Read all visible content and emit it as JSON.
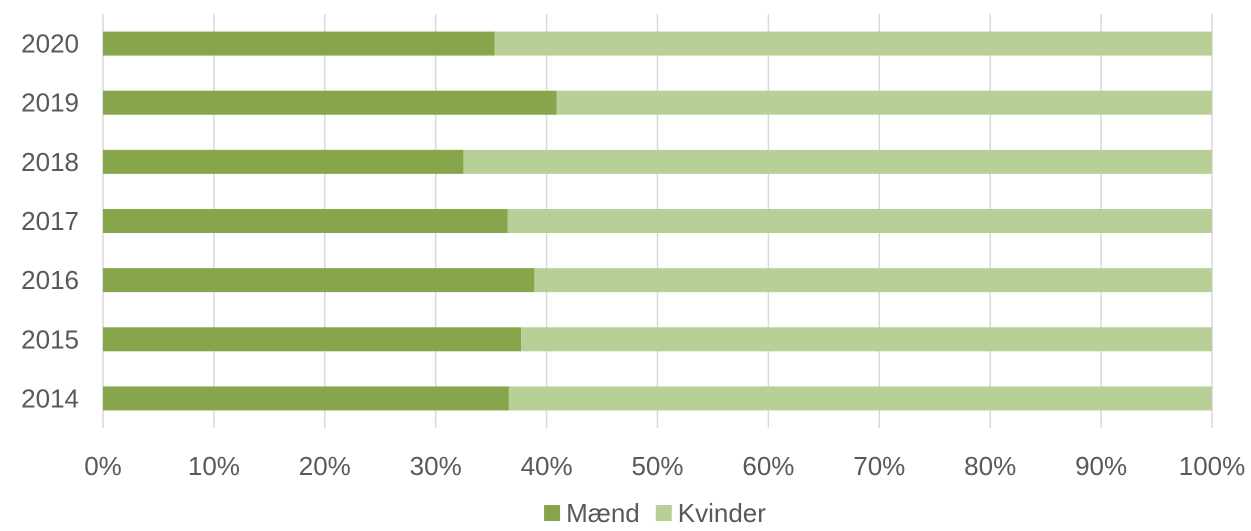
{
  "chart_data": {
    "type": "bar",
    "orientation": "horizontal",
    "stacked": "percent",
    "categories": [
      "2020",
      "2019",
      "2018",
      "2017",
      "2016",
      "2015",
      "2014"
    ],
    "series": [
      {
        "name": "Mænd",
        "color": "#87a54a",
        "values": [
          35.3,
          40.9,
          32.5,
          36.5,
          38.9,
          37.7,
          36.6
        ]
      },
      {
        "name": "Kvinder",
        "color": "#b8cf98",
        "values": [
          64.7,
          59.1,
          67.5,
          63.5,
          61.1,
          62.3,
          63.4
        ]
      }
    ],
    "x_ticks": [
      "0%",
      "10%",
      "20%",
      "30%",
      "40%",
      "50%",
      "60%",
      "70%",
      "80%",
      "90%",
      "100%"
    ],
    "xlim": [
      0,
      100
    ],
    "grid": true,
    "legend": "bottom-center",
    "title": "",
    "xlabel": "",
    "ylabel": ""
  }
}
